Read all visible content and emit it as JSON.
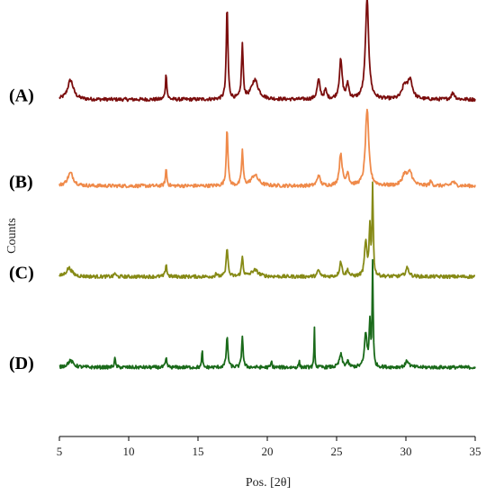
{
  "chart_data": {
    "type": "line",
    "title": "",
    "xlabel": "Pos. [2θ]",
    "ylabel": "Counts",
    "xlim": [
      5,
      35
    ],
    "xticks": [
      5,
      10,
      15,
      20,
      25,
      30,
      35
    ],
    "ylim": [
      0,
      1
    ],
    "grid": false,
    "stacked_offset": true,
    "series": [
      {
        "name": "(A)",
        "color": "#7b0d0d",
        "baseline": 0.78,
        "peaks": [
          [
            5.8,
            0.045,
            0.25
          ],
          [
            12.7,
            0.06,
            0.06
          ],
          [
            17.1,
            0.215,
            0.07
          ],
          [
            18.2,
            0.125,
            0.07
          ],
          [
            19.1,
            0.045,
            0.3
          ],
          [
            23.7,
            0.045,
            0.12
          ],
          [
            24.2,
            0.02,
            0.1
          ],
          [
            25.3,
            0.09,
            0.12
          ],
          [
            25.8,
            0.035,
            0.1
          ],
          [
            27.2,
            0.232,
            0.14
          ],
          [
            29.9,
            0.03,
            0.2
          ],
          [
            30.3,
            0.045,
            0.2
          ],
          [
            33.4,
            0.015,
            0.15
          ]
        ]
      },
      {
        "name": "(B)",
        "color": "#ef8a4a",
        "baseline": 0.58,
        "peaks": [
          [
            5.8,
            0.03,
            0.25
          ],
          [
            12.7,
            0.04,
            0.06
          ],
          [
            17.1,
            0.135,
            0.07
          ],
          [
            18.2,
            0.08,
            0.07
          ],
          [
            19.1,
            0.025,
            0.3
          ],
          [
            23.7,
            0.025,
            0.12
          ],
          [
            25.3,
            0.075,
            0.12
          ],
          [
            25.8,
            0.03,
            0.1
          ],
          [
            27.2,
            0.178,
            0.14
          ],
          [
            29.9,
            0.025,
            0.2
          ],
          [
            30.3,
            0.03,
            0.2
          ],
          [
            31.8,
            0.01,
            0.1
          ],
          [
            33.4,
            0.01,
            0.15
          ]
        ]
      },
      {
        "name": "(C)",
        "color": "#868a16",
        "baseline": 0.37,
        "peaks": [
          [
            5.7,
            0.02,
            0.25
          ],
          [
            9.0,
            0.01,
            0.05
          ],
          [
            12.7,
            0.03,
            0.06
          ],
          [
            16.3,
            0.01,
            0.05
          ],
          [
            17.1,
            0.07,
            0.07
          ],
          [
            18.2,
            0.045,
            0.07
          ],
          [
            19.1,
            0.015,
            0.3
          ],
          [
            23.7,
            0.015,
            0.1
          ],
          [
            25.3,
            0.035,
            0.1
          ],
          [
            25.8,
            0.015,
            0.1
          ],
          [
            27.1,
            0.08,
            0.1
          ],
          [
            27.4,
            0.11,
            0.06
          ],
          [
            27.6,
            0.205,
            0.05
          ],
          [
            30.1,
            0.02,
            0.15
          ]
        ]
      },
      {
        "name": "(D)",
        "color": "#1a6a1a",
        "baseline": 0.16,
        "peaks": [
          [
            5.8,
            0.015,
            0.25
          ],
          [
            9.0,
            0.02,
            0.06
          ],
          [
            12.7,
            0.02,
            0.06
          ],
          [
            15.3,
            0.05,
            0.03
          ],
          [
            17.1,
            0.07,
            0.07
          ],
          [
            18.2,
            0.075,
            0.06
          ],
          [
            20.3,
            0.015,
            0.04
          ],
          [
            22.3,
            0.015,
            0.04
          ],
          [
            23.4,
            0.09,
            0.03
          ],
          [
            25.3,
            0.03,
            0.12
          ],
          [
            25.8,
            0.012,
            0.1
          ],
          [
            27.1,
            0.08,
            0.1
          ],
          [
            27.4,
            0.1,
            0.06
          ],
          [
            27.6,
            0.24,
            0.04
          ],
          [
            30.1,
            0.015,
            0.15
          ]
        ]
      }
    ]
  }
}
